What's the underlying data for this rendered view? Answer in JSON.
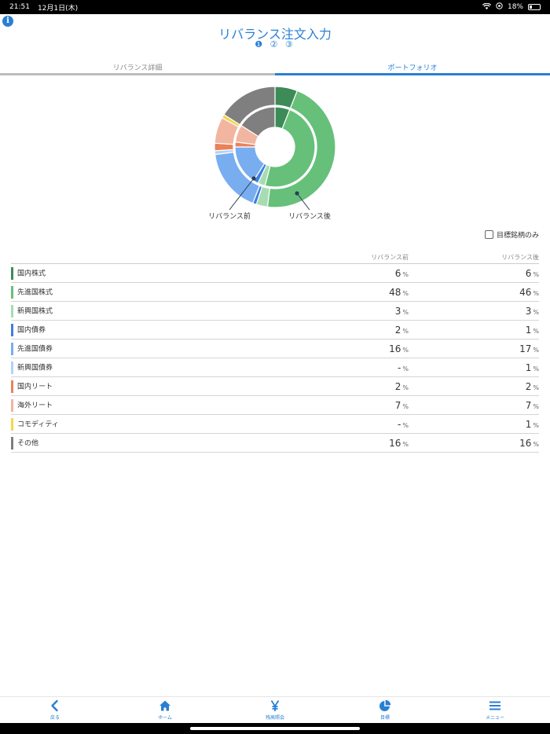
{
  "status": {
    "time": "21:51",
    "date": "12月1日(木)",
    "battery": "18%",
    "battery_level": 0.18
  },
  "header": {
    "title": "リバランス注文入力",
    "steps": "❶ ② ③"
  },
  "tabs": [
    {
      "label": "リバランス詳細",
      "active": false
    },
    {
      "label": "ポートフォリオ",
      "active": true
    }
  ],
  "filter": {
    "label": "目標銘柄のみ",
    "checked": false
  },
  "table": {
    "col_before": "リバランス前",
    "col_after": "リバランス後",
    "unit": "%",
    "rows": [
      {
        "name": "国内株式",
        "color": "#3d8b57",
        "before": "6",
        "after": "6"
      },
      {
        "name": "先進国株式",
        "color": "#66c07a",
        "before": "48",
        "after": "46"
      },
      {
        "name": "新興国株式",
        "color": "#a7dcb2",
        "before": "3",
        "after": "3"
      },
      {
        "name": "国内債券",
        "color": "#3f7fe0",
        "before": "2",
        "after": "1"
      },
      {
        "name": "先進国債券",
        "color": "#78aef0",
        "before": "16",
        "after": "17"
      },
      {
        "name": "新興国債券",
        "color": "#b4d2f4",
        "before": "-",
        "after": "1"
      },
      {
        "name": "国内リート",
        "color": "#e8825c",
        "before": "2",
        "after": "2"
      },
      {
        "name": "海外リート",
        "color": "#f2b59f",
        "before": "7",
        "after": "7"
      },
      {
        "name": "コモディティ",
        "color": "#f3d74a",
        "before": "-",
        "after": "1"
      },
      {
        "name": "その他",
        "color": "#7f7f7f",
        "before": "16",
        "after": "16"
      }
    ]
  },
  "chart_data": {
    "type": "pie",
    "categories": [
      "国内株式",
      "先進国株式",
      "新興国株式",
      "国内債券",
      "先進国債券",
      "新興国債券",
      "国内リート",
      "海外リート",
      "コモディティ",
      "その他"
    ],
    "colors": [
      "#3d8b57",
      "#66c07a",
      "#a7dcb2",
      "#3f7fe0",
      "#78aef0",
      "#b4d2f4",
      "#e8825c",
      "#f2b59f",
      "#f3d74a",
      "#7f7f7f"
    ],
    "series": [
      {
        "name": "リバランス前",
        "ring": "inner",
        "values": [
          6,
          48,
          3,
          2,
          16,
          0,
          2,
          7,
          0,
          16
        ]
      },
      {
        "name": "リバランス後",
        "ring": "outer",
        "values": [
          6,
          46,
          3,
          1,
          17,
          1,
          2,
          7,
          1,
          16
        ]
      }
    ],
    "labels": {
      "inner": "リバランス前",
      "outer": "リバランス後"
    }
  },
  "nav": [
    {
      "label": "戻る",
      "icon": "chevron-left-icon"
    },
    {
      "label": "ホーム",
      "icon": "home-icon"
    },
    {
      "label": "残高照会",
      "icon": "yen-icon"
    },
    {
      "label": "目標",
      "icon": "pie-chart-icon"
    },
    {
      "label": "メニュー",
      "icon": "menu-icon"
    }
  ]
}
